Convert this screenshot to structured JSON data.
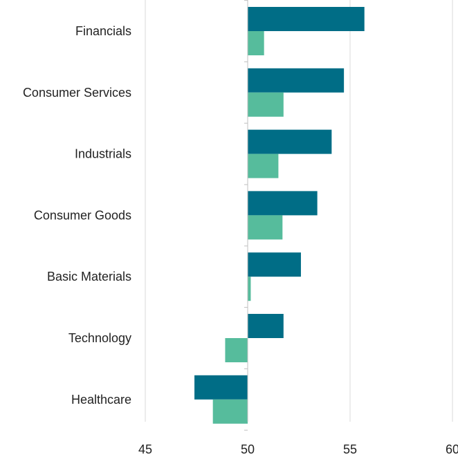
{
  "chart_data": {
    "type": "bar",
    "orientation": "horizontal",
    "categories": [
      "Financials",
      "Consumer Services",
      "Industrials",
      "Consumer Goods",
      "Basic Materials",
      "Technology",
      "Healthcare"
    ],
    "series": [
      {
        "values": [
          55.7,
          54.7,
          54.1,
          53.4,
          52.6,
          51.75,
          47.4
        ],
        "color": "#006d86"
      },
      {
        "values": [
          50.8,
          51.75,
          51.5,
          51.7,
          50.15,
          48.9,
          48.3
        ],
        "color": "#56bc9c"
      }
    ],
    "baseline": 50,
    "xlim": [
      45,
      60
    ],
    "xticks": [
      45,
      50,
      55,
      60
    ],
    "grid": true,
    "title": "",
    "xlabel": "",
    "ylabel": ""
  }
}
